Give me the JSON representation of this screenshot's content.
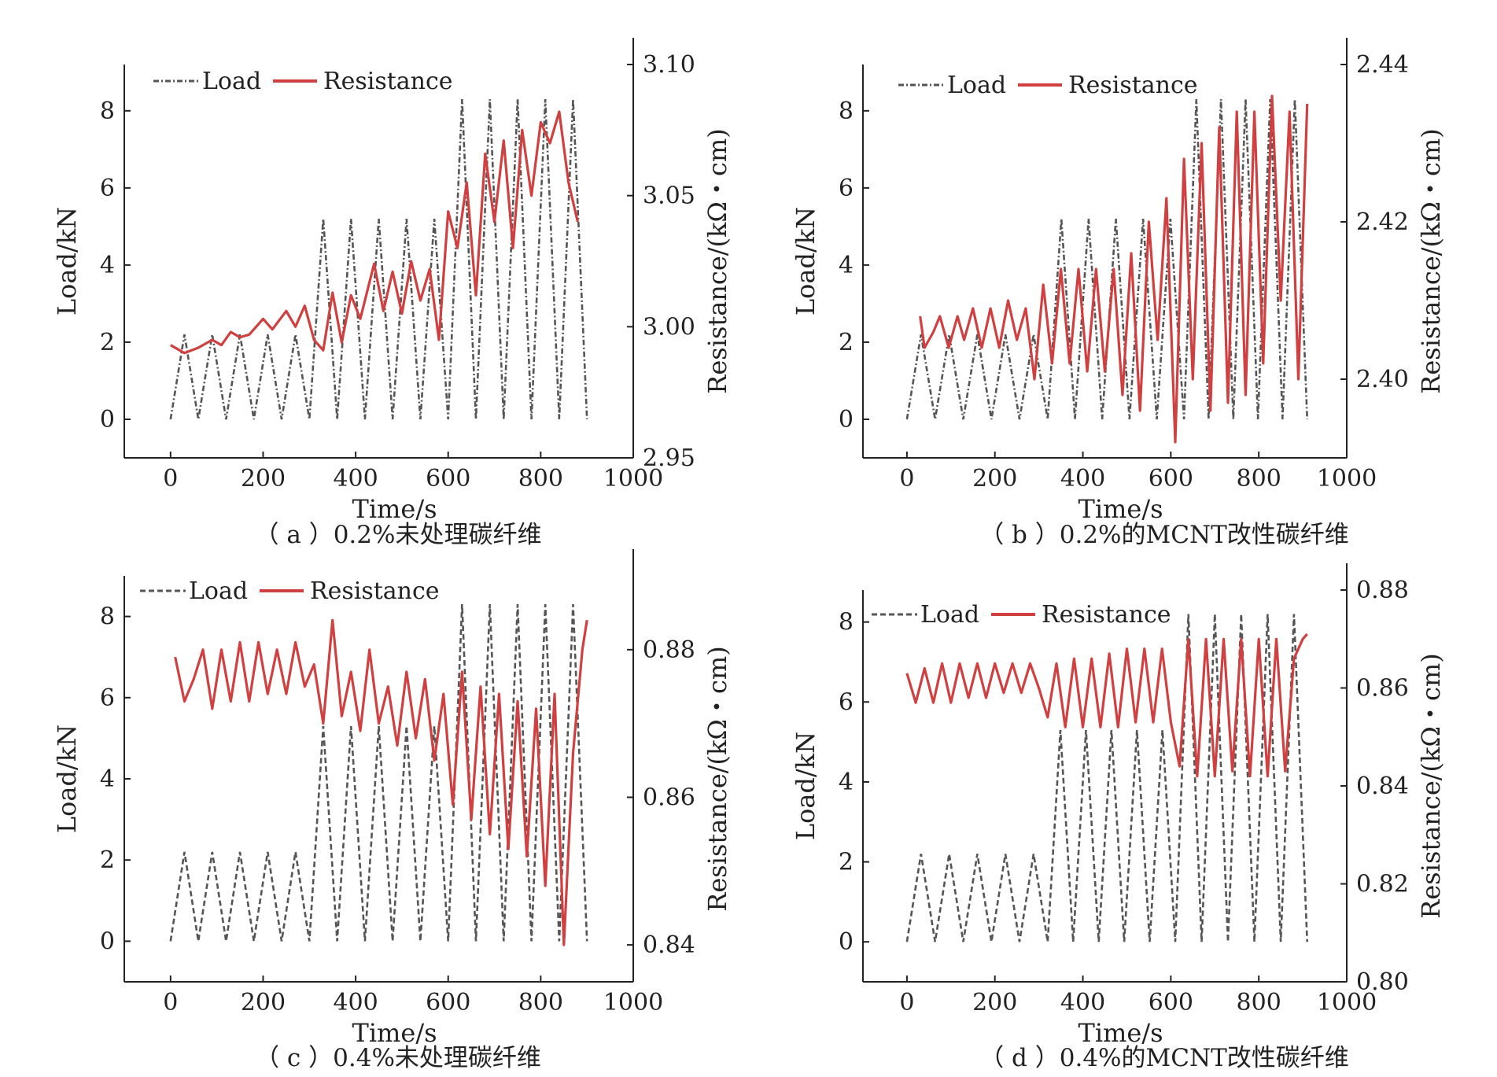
{
  "colors": {
    "load": "#555555",
    "resistance": "#d04040",
    "axis": "#222222"
  },
  "chart_data": [
    {
      "type": "line",
      "caption": "（ a ）0.2%未处理碳纤维",
      "xlabel": "Time/s",
      "ylabel": "Load/kN",
      "ylabel_right": "Resistance/(kΩ・cm)",
      "xlim": [
        -100,
        1000
      ],
      "ylim": [
        -1,
        9.2
      ],
      "y2lim": [
        2.95,
        3.1
      ],
      "xticks": [
        0,
        200,
        400,
        600,
        800,
        1000
      ],
      "yticks": [
        0,
        2,
        4,
        6,
        8
      ],
      "y2ticks": [
        "2.95",
        "3.00",
        "3.05",
        "3.10"
      ],
      "legend": {
        "position": "top-left",
        "items": [
          "Load",
          "Resistance"
        ]
      },
      "grid": false,
      "series": [
        {
          "name": "Load",
          "style": "dash-dot",
          "cycles": [
            {
              "start": 0,
              "end": 300,
              "count": 5,
              "peak": 2.2
            },
            {
              "start": 300,
              "end": 600,
              "count": 5,
              "peak": 5.2
            },
            {
              "start": 600,
              "end": 900,
              "count": 5,
              "peak": 8.3
            }
          ]
        },
        {
          "name": "Resistance",
          "axis": "right",
          "x": [
            0,
            30,
            60,
            90,
            110,
            130,
            150,
            170,
            200,
            220,
            250,
            270,
            290,
            310,
            330,
            350,
            370,
            390,
            410,
            440,
            460,
            480,
            500,
            520,
            540,
            560,
            580,
            600,
            620,
            640,
            660,
            680,
            700,
            720,
            740,
            760,
            780,
            800,
            820,
            840,
            860,
            880
          ],
          "y": [
            2.993,
            2.99,
            2.992,
            2.995,
            2.993,
            2.998,
            2.996,
            2.997,
            3.003,
            2.999,
            3.006,
            3.0,
            3.008,
            2.995,
            2.991,
            3.013,
            2.994,
            3.012,
            3.003,
            3.024,
            3.006,
            3.021,
            3.005,
            3.025,
            3.01,
            3.022,
            2.995,
            3.044,
            3.03,
            3.055,
            3.012,
            3.066,
            3.04,
            3.071,
            3.03,
            3.075,
            3.05,
            3.078,
            3.07,
            3.082,
            3.055,
            3.04
          ]
        }
      ]
    },
    {
      "type": "line",
      "caption": "（ b ）0.2%的MCNT改性碳纤维",
      "xlabel": "Time/s",
      "ylabel": "Load/kN",
      "ylabel_right": "Resistance/(kΩ・cm)",
      "xlim": [
        -100,
        1000
      ],
      "ylim": [
        -1,
        9.2
      ],
      "y2lim": [
        2.39,
        2.44
      ],
      "xticks": [
        0,
        200,
        400,
        600,
        800,
        1000
      ],
      "yticks": [
        0,
        2,
        4,
        6,
        8
      ],
      "y2ticks": [
        "2.40",
        "2.42",
        "2.44"
      ],
      "legend": {
        "position": "top-left",
        "items": [
          "Load",
          "Resistance"
        ]
      },
      "grid": false,
      "series": [
        {
          "name": "Load",
          "style": "dash-dot",
          "cycles": [
            {
              "start": 0,
              "end": 320,
              "count": 5,
              "peak": 2.2
            },
            {
              "start": 320,
              "end": 630,
              "count": 5,
              "peak": 5.2
            },
            {
              "start": 630,
              "end": 910,
              "count": 5,
              "peak": 8.3
            }
          ]
        },
        {
          "name": "Resistance",
          "axis": "right",
          "x": [
            30,
            40,
            60,
            75,
            95,
            115,
            130,
            150,
            170,
            190,
            210,
            230,
            250,
            270,
            290,
            310,
            330,
            350,
            370,
            390,
            410,
            430,
            450,
            470,
            490,
            510,
            530,
            550,
            570,
            590,
            610,
            630,
            650,
            670,
            690,
            710,
            730,
            750,
            770,
            790,
            810,
            830,
            850,
            870,
            890,
            910
          ],
          "y": [
            2.408,
            2.404,
            2.406,
            2.408,
            2.404,
            2.408,
            2.405,
            2.409,
            2.404,
            2.409,
            2.404,
            2.41,
            2.405,
            2.409,
            2.4,
            2.412,
            2.402,
            2.414,
            2.402,
            2.414,
            2.401,
            2.414,
            2.401,
            2.414,
            2.398,
            2.416,
            2.396,
            2.42,
            2.405,
            2.423,
            2.392,
            2.428,
            2.4,
            2.43,
            2.396,
            2.432,
            2.397,
            2.434,
            2.398,
            2.434,
            2.402,
            2.436,
            2.41,
            2.434,
            2.4,
            2.435
          ]
        }
      ]
    },
    {
      "type": "line",
      "caption": "（ c ）0.4%未处理碳纤维",
      "xlabel": "Time/s",
      "ylabel": "Load/kN",
      "ylabel_right": "Resistance/(kΩ・cm)",
      "xlim": [
        -100,
        1000
      ],
      "ylim": [
        -1,
        9
      ],
      "y2lim": [
        0.835,
        0.89
      ],
      "xticks": [
        0,
        200,
        400,
        600,
        800,
        1000
      ],
      "yticks": [
        0,
        2,
        4,
        6,
        8
      ],
      "y2ticks": [
        "0.84",
        "0.86",
        "0.88"
      ],
      "legend": {
        "position": "top-left",
        "items": [
          "Load",
          "Resistance"
        ]
      },
      "grid": false,
      "series": [
        {
          "name": "Load",
          "style": "dashed",
          "cycles": [
            {
              "start": 0,
              "end": 300,
              "count": 5,
              "peak": 2.2
            },
            {
              "start": 300,
              "end": 600,
              "count": 5,
              "peak": 5.3
            },
            {
              "start": 600,
              "end": 900,
              "count": 5,
              "peak": 8.3
            }
          ]
        },
        {
          "name": "Resistance",
          "axis": "right",
          "x": [
            10,
            30,
            50,
            70,
            90,
            110,
            130,
            150,
            170,
            190,
            210,
            230,
            250,
            270,
            290,
            310,
            330,
            350,
            370,
            390,
            410,
            430,
            450,
            470,
            490,
            510,
            530,
            550,
            570,
            590,
            610,
            630,
            650,
            670,
            690,
            710,
            730,
            750,
            770,
            790,
            810,
            830,
            850,
            870,
            890,
            900
          ],
          "y": [
            0.879,
            0.873,
            0.876,
            0.88,
            0.872,
            0.88,
            0.873,
            0.881,
            0.873,
            0.881,
            0.874,
            0.88,
            0.874,
            0.881,
            0.875,
            0.878,
            0.87,
            0.884,
            0.871,
            0.877,
            0.869,
            0.88,
            0.87,
            0.875,
            0.867,
            0.877,
            0.868,
            0.876,
            0.865,
            0.874,
            0.859,
            0.877,
            0.857,
            0.875,
            0.855,
            0.874,
            0.853,
            0.873,
            0.852,
            0.872,
            0.848,
            0.874,
            0.84,
            0.866,
            0.88,
            0.884
          ]
        }
      ]
    },
    {
      "type": "line",
      "caption": "（ d ）0.4%的MCNT改性碳纤维",
      "xlabel": "Time/s",
      "ylabel": "Load/kN",
      "ylabel_right": "Resistance/(kΩ・cm)",
      "xlim": [
        -100,
        1000
      ],
      "ylim": [
        -1,
        8.8
      ],
      "y2lim": [
        0.8,
        0.88
      ],
      "xticks": [
        0,
        200,
        400,
        600,
        800,
        1000
      ],
      "yticks": [
        0,
        2,
        4,
        6,
        8
      ],
      "y2ticks": [
        "0.80",
        "0.82",
        "0.84",
        "0.86",
        "0.88"
      ],
      "legend": {
        "position": "top-left",
        "items": [
          "Load",
          "Resistance"
        ]
      },
      "grid": false,
      "series": [
        {
          "name": "Load",
          "style": "dashed",
          "cycles": [
            {
              "start": 0,
              "end": 320,
              "count": 5,
              "peak": 2.2
            },
            {
              "start": 320,
              "end": 610,
              "count": 5,
              "peak": 5.3
            },
            {
              "start": 610,
              "end": 910,
              "count": 5,
              "peak": 8.2
            }
          ]
        },
        {
          "name": "Resistance",
          "axis": "right",
          "x": [
            0,
            20,
            40,
            60,
            80,
            100,
            120,
            140,
            160,
            180,
            200,
            220,
            240,
            260,
            280,
            300,
            320,
            340,
            360,
            380,
            400,
            420,
            440,
            460,
            480,
            500,
            520,
            540,
            560,
            580,
            600,
            620,
            640,
            660,
            680,
            700,
            720,
            740,
            760,
            780,
            800,
            820,
            840,
            860,
            880,
            900,
            910
          ],
          "y": [
            0.863,
            0.857,
            0.864,
            0.857,
            0.865,
            0.857,
            0.865,
            0.858,
            0.865,
            0.858,
            0.865,
            0.859,
            0.865,
            0.859,
            0.865,
            0.86,
            0.854,
            0.865,
            0.852,
            0.866,
            0.852,
            0.866,
            0.852,
            0.867,
            0.852,
            0.868,
            0.853,
            0.868,
            0.853,
            0.868,
            0.853,
            0.844,
            0.87,
            0.842,
            0.87,
            0.842,
            0.87,
            0.843,
            0.87,
            0.842,
            0.87,
            0.842,
            0.87,
            0.843,
            0.866,
            0.87,
            0.871
          ]
        }
      ]
    }
  ]
}
